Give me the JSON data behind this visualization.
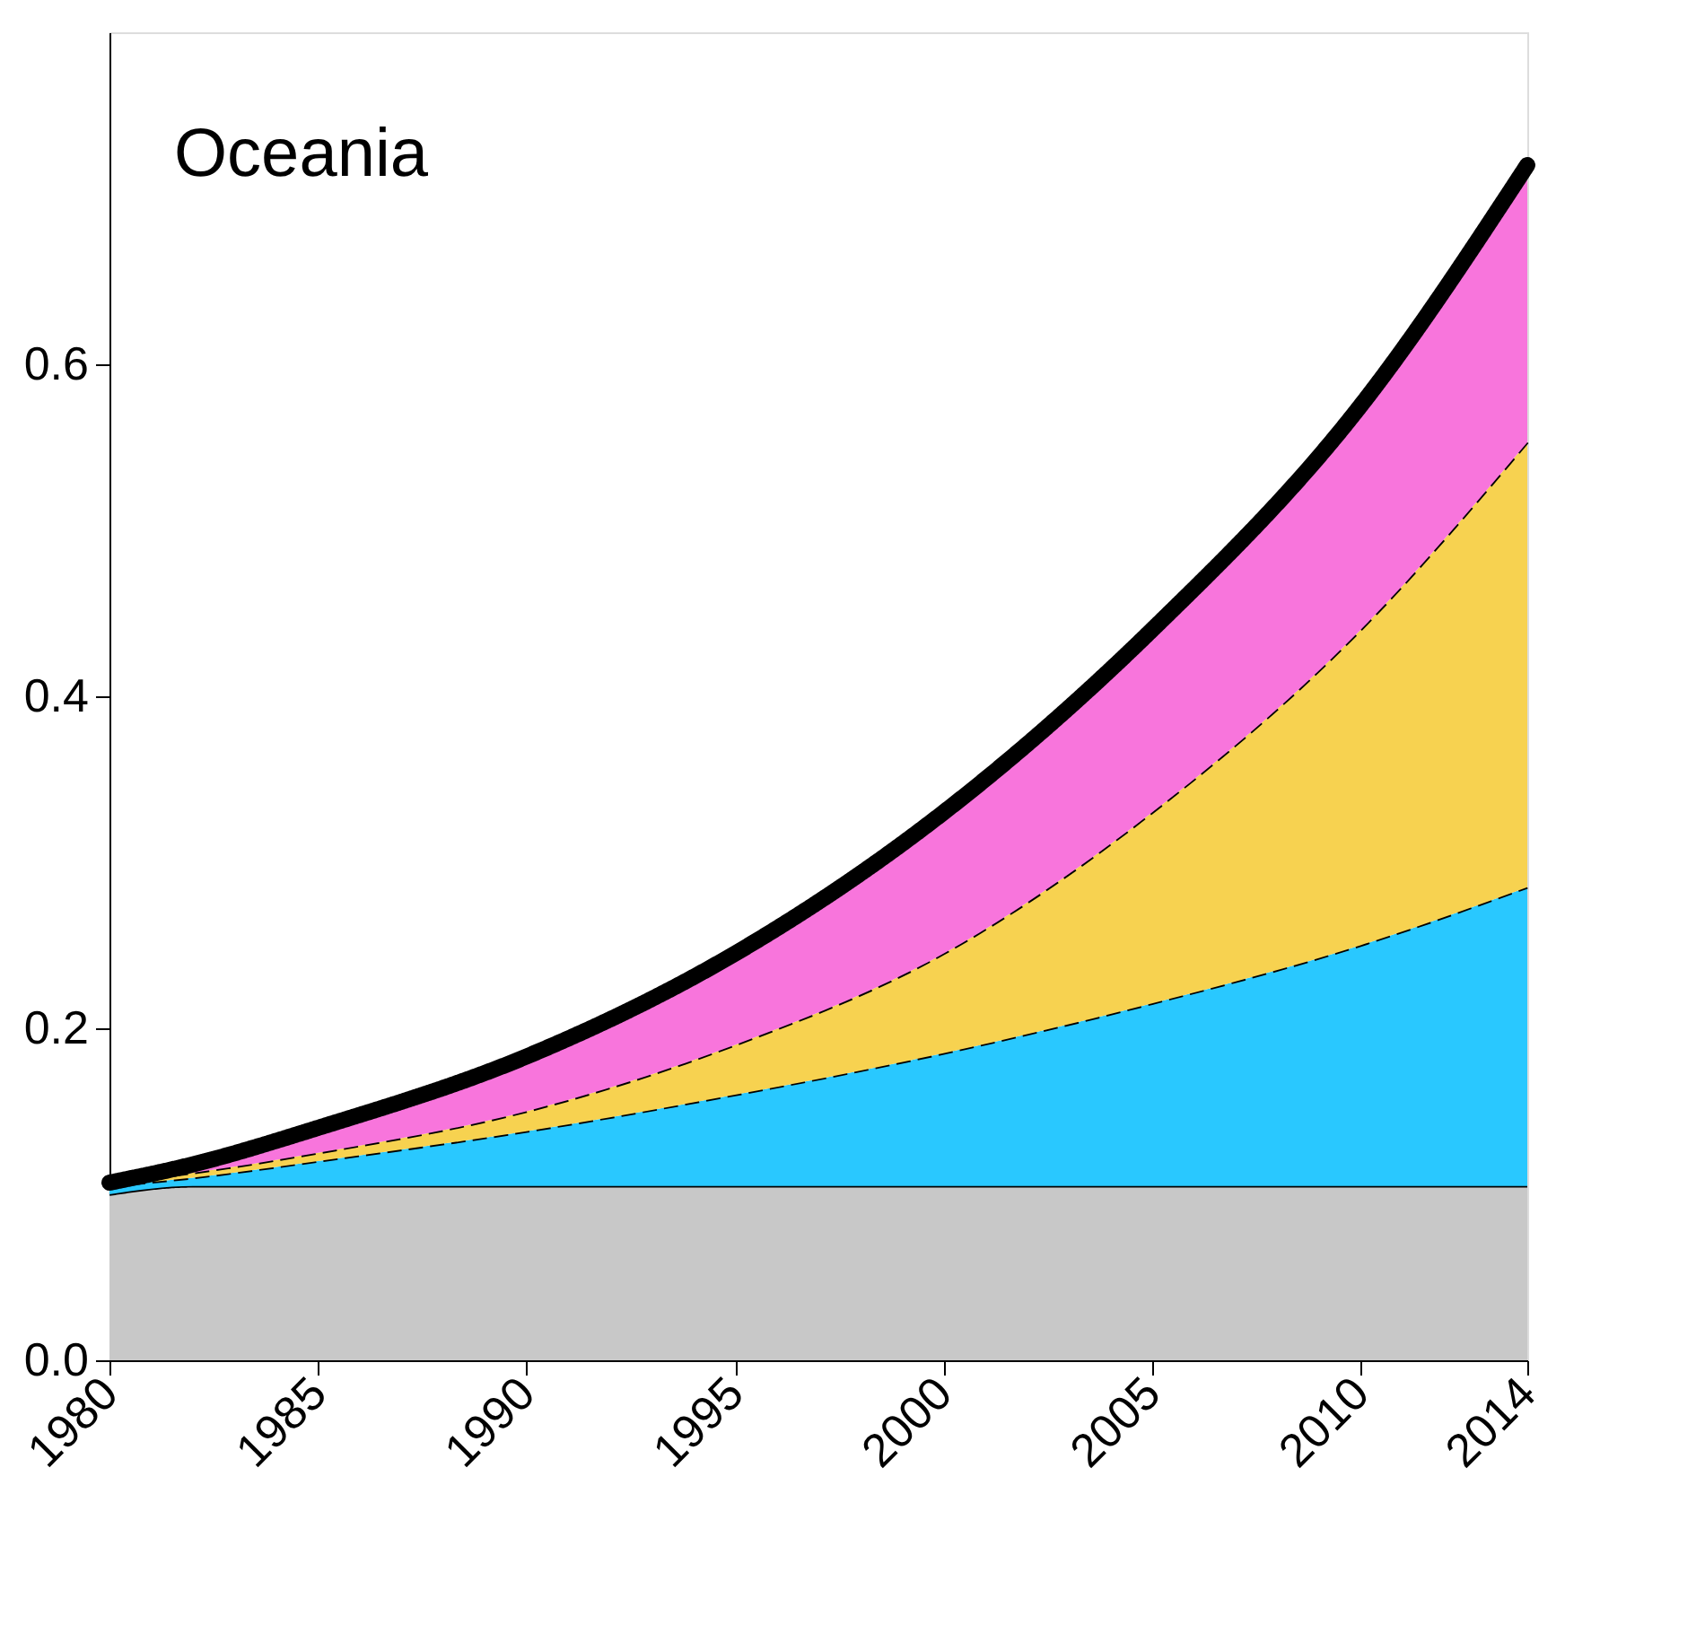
{
  "chart_data": {
    "type": "area",
    "stacked": true,
    "annotations": [
      "Oceania"
    ],
    "x": [
      1980,
      1982,
      1985,
      1990,
      1995,
      2000,
      2005,
      2010,
      2014
    ],
    "series": [
      {
        "color": "#c8c8c8",
        "line_style": "solid",
        "values": [
          0.1,
          0.105,
          0.105,
          0.105,
          0.105,
          0.105,
          0.105,
          0.105,
          0.105
        ]
      },
      {
        "color": "#29c8ff",
        "line_style": "dashed",
        "values": [
          0.005,
          0.005,
          0.015,
          0.033,
          0.055,
          0.08,
          0.11,
          0.145,
          0.18
        ]
      },
      {
        "color": "#f7d250",
        "line_style": "dashed",
        "values": [
          0.002,
          0.003,
          0.005,
          0.012,
          0.03,
          0.06,
          0.115,
          0.19,
          0.268
        ]
      },
      {
        "color": "#f875dc",
        "line_style": "solid",
        "values": [
          0.0,
          0.005,
          0.015,
          0.033,
          0.055,
          0.085,
          0.11,
          0.135,
          0.167
        ]
      }
    ],
    "xlim": [
      1980,
      2014
    ],
    "xticks": [
      1980,
      1985,
      1990,
      1995,
      2000,
      2005,
      2010,
      2014
    ],
    "ylim": [
      0,
      0.8
    ],
    "yticks": [
      {
        "value": 0,
        "label": "0.0"
      },
      {
        "value": 0.2,
        "label": "0.2"
      },
      {
        "value": 0.4,
        "label": "0.4"
      },
      {
        "value": 0.6,
        "label": "0.6"
      }
    ],
    "grid": false
  }
}
